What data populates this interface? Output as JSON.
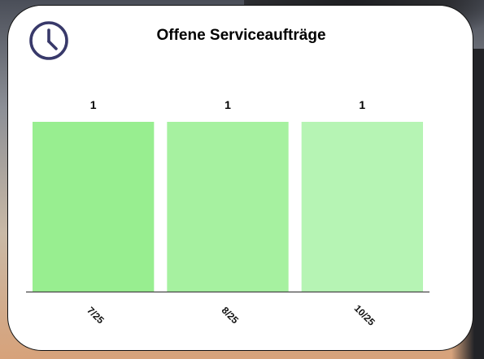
{
  "widget": {
    "title": "Offene Serviceaufträge",
    "icon": "clock-icon"
  },
  "chart_data": {
    "type": "bar",
    "title": "Offene Serviceaufträge",
    "categories": [
      "7/25",
      "8/25",
      "10/25"
    ],
    "values": [
      1,
      1,
      1
    ],
    "ylim": [
      0,
      1
    ],
    "xlabel": "",
    "ylabel": "",
    "grid": false,
    "legend": "none",
    "bar_colors": [
      "#98ee90",
      "#a6f1a0",
      "#b6f4b4"
    ],
    "axis_color": "#444444"
  }
}
